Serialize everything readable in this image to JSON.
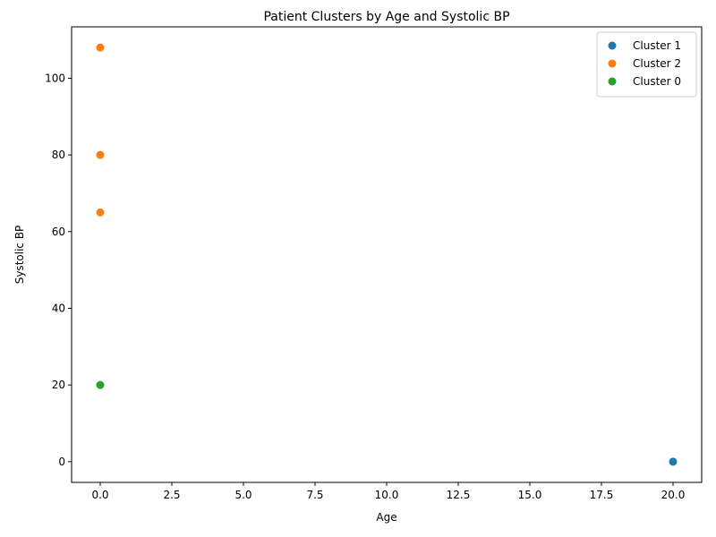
{
  "chart_data": {
    "type": "scatter",
    "title": "Patient Clusters by Age and Systolic BP",
    "xlabel": "Age",
    "ylabel": "Systolic BP",
    "xlim": [
      -1.0,
      21.0
    ],
    "ylim": [
      -5.4,
      113.4
    ],
    "xticks": [
      0.0,
      2.5,
      5.0,
      7.5,
      10.0,
      12.5,
      15.0,
      17.5,
      20.0
    ],
    "xtick_labels": [
      "0.0",
      "2.5",
      "5.0",
      "7.5",
      "10.0",
      "12.5",
      "15.0",
      "17.5",
      "20.0"
    ],
    "yticks": [
      0,
      20,
      40,
      60,
      80,
      100
    ],
    "ytick_labels": [
      "0",
      "20",
      "40",
      "60",
      "80",
      "100"
    ],
    "grid": false,
    "legend_position": "top-right",
    "series": [
      {
        "name": "Cluster 1",
        "color": "#1f77b4",
        "points": [
          [
            20,
            0
          ]
        ]
      },
      {
        "name": "Cluster 2",
        "color": "#ff7f0e",
        "points": [
          [
            0,
            108
          ],
          [
            0,
            80
          ],
          [
            0,
            65
          ]
        ]
      },
      {
        "name": "Cluster 0",
        "color": "#2ca02c",
        "points": [
          [
            0,
            20
          ]
        ]
      }
    ]
  }
}
